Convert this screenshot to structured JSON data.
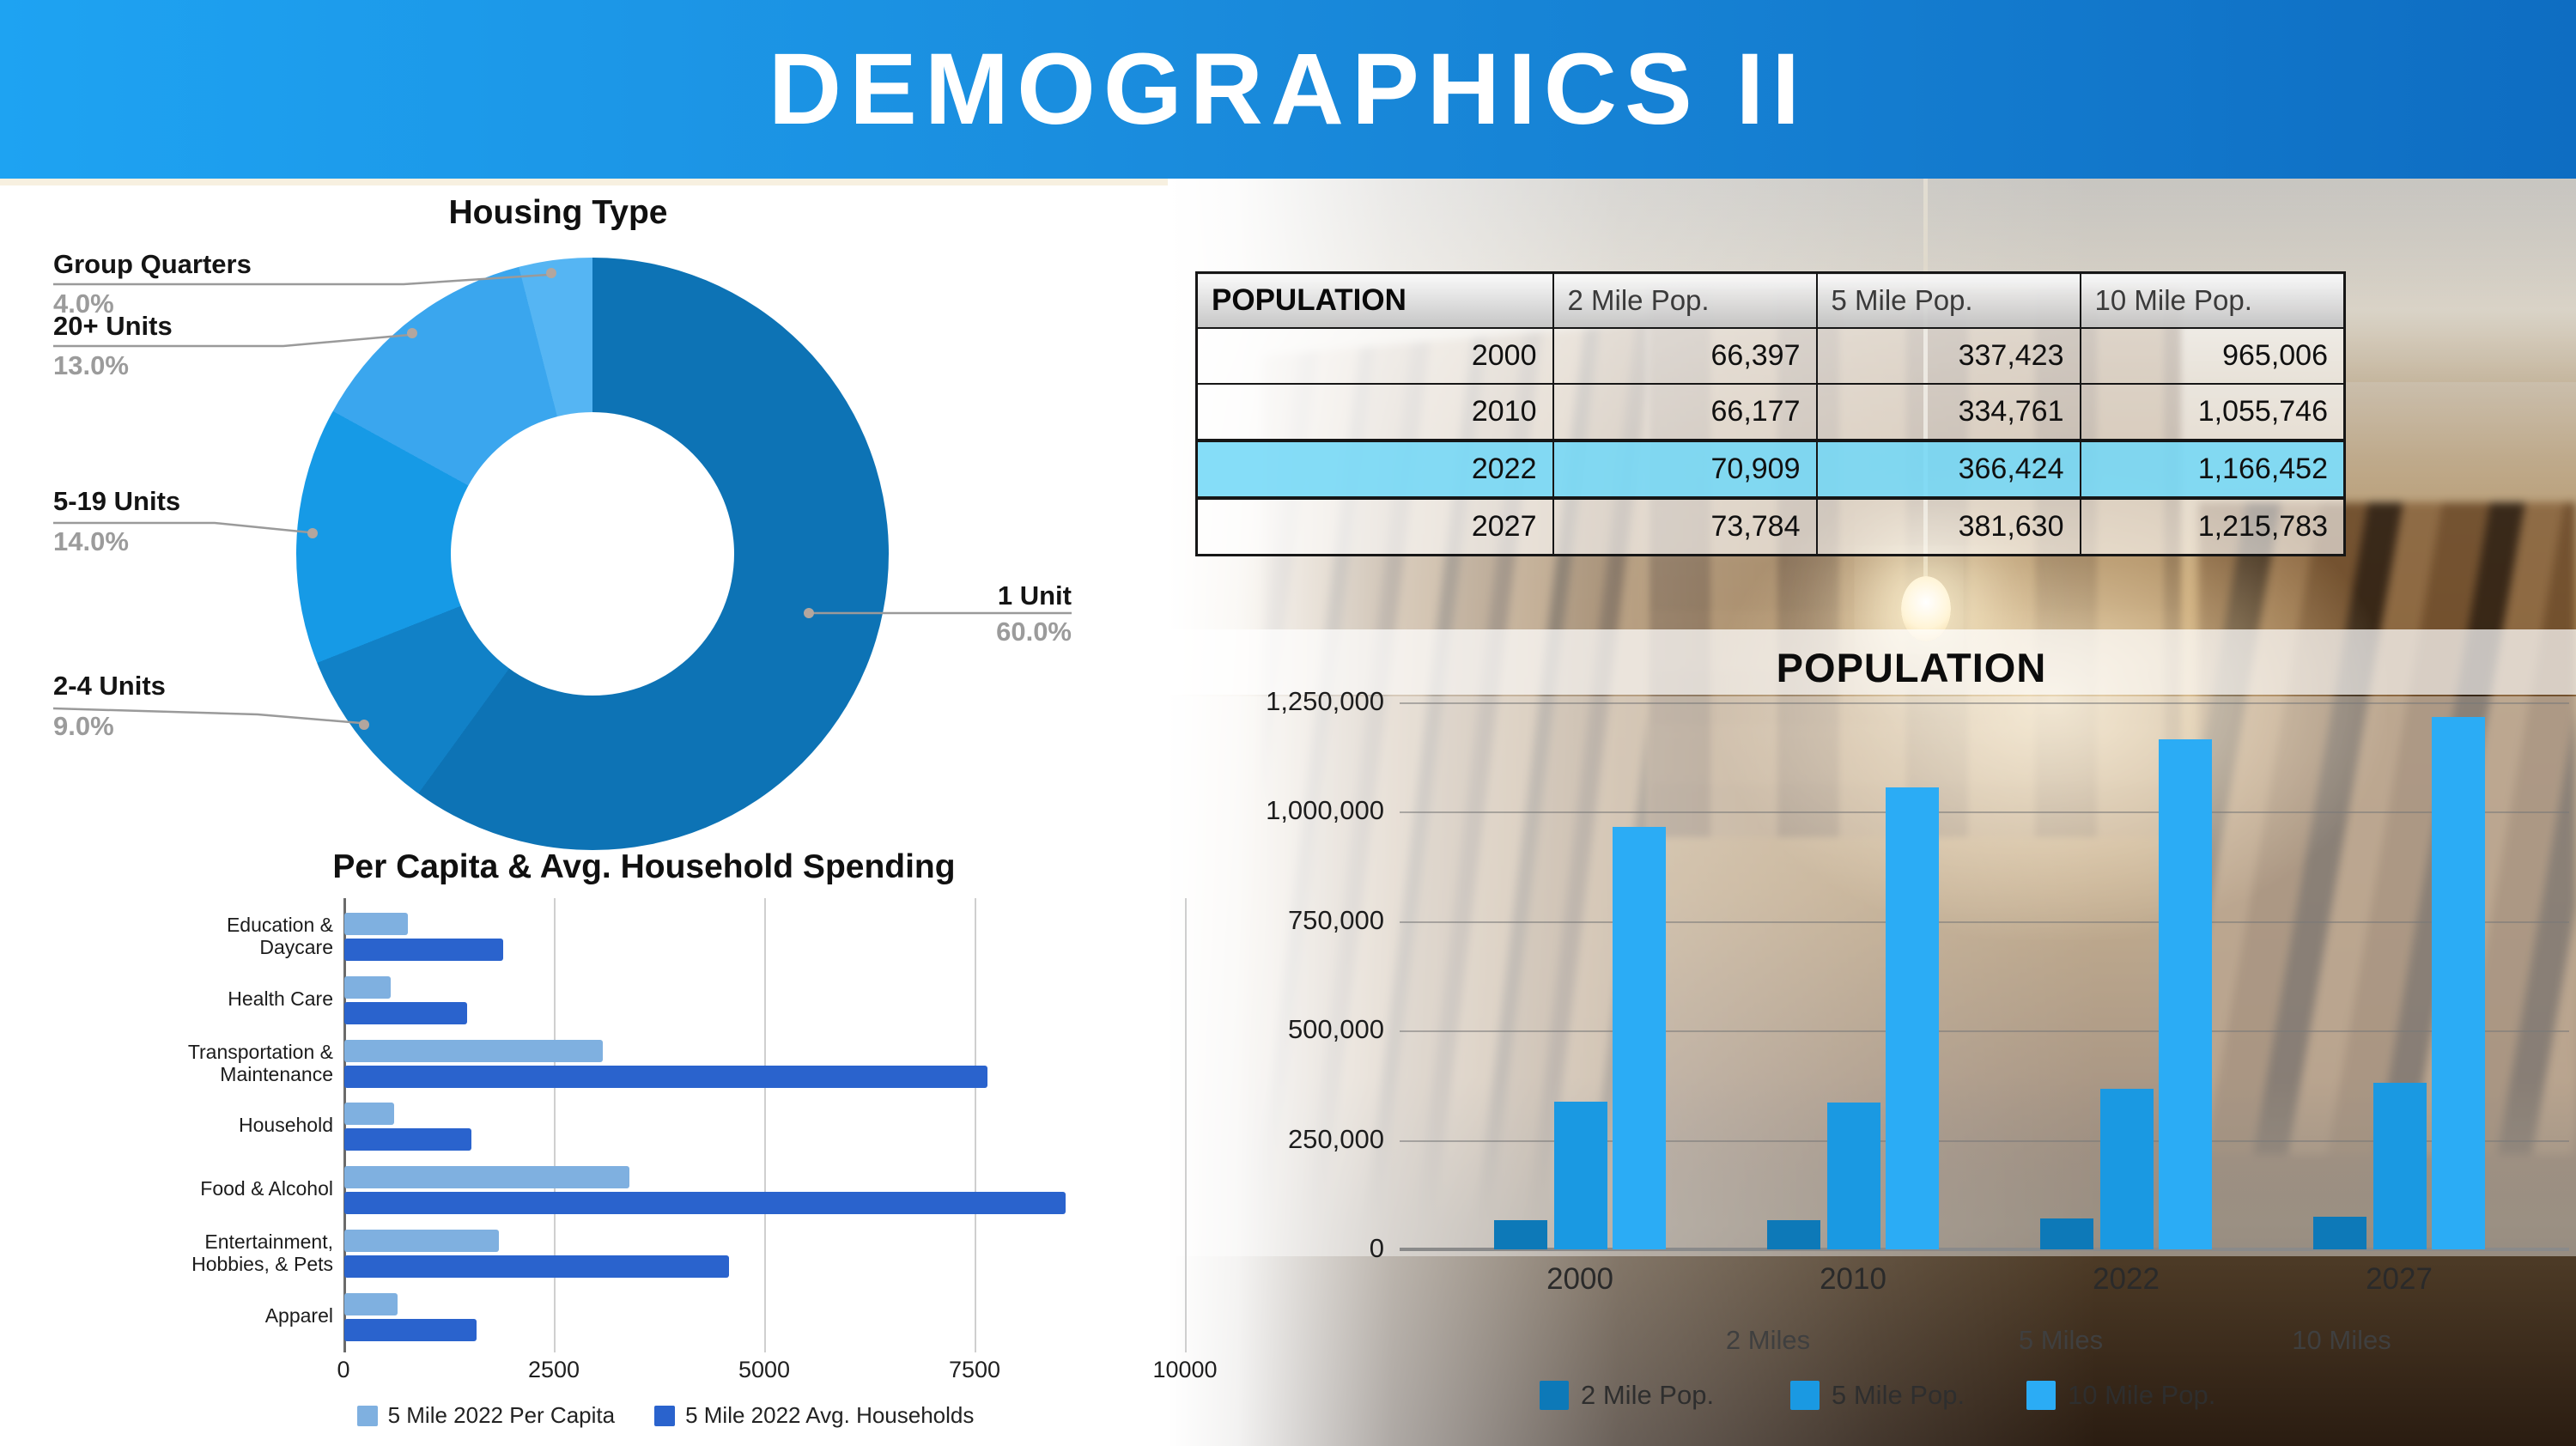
{
  "header": {
    "title": "DEMOGRAPHICS II"
  },
  "population_table": {
    "header": [
      "POPULATION",
      "2 Mile Pop.",
      "5 Mile Pop.",
      "10 Mile Pop."
    ],
    "rows": [
      {
        "year": "2000",
        "values": [
          "66,397",
          "337,423",
          "965,006"
        ],
        "highlight": false
      },
      {
        "year": "2010",
        "values": [
          "66,177",
          "334,761",
          "1,055,746"
        ],
        "highlight": false
      },
      {
        "year": "2022",
        "values": [
          "70,909",
          "366,424",
          "1,166,452"
        ],
        "highlight": true
      },
      {
        "year": "2027",
        "values": [
          "73,784",
          "381,630",
          "1,215,783"
        ],
        "highlight": false
      }
    ],
    "highlight_color": "#7edbf8"
  },
  "chart_data": [
    {
      "id": "housing_type",
      "type": "pie",
      "donut": true,
      "title": "Housing Type",
      "labels": [
        "1 Unit",
        "2-4 Units",
        "5-19 Units",
        "20+ Units",
        "Group Quarters"
      ],
      "values": [
        60.0,
        9.0,
        14.0,
        13.0,
        4.0
      ],
      "percent_labels": [
        "60.0%",
        "9.0%",
        "14.0%",
        "13.0%",
        "4.0%"
      ],
      "colors": [
        "#0d73b5",
        "#1181c7",
        "#169ae6",
        "#3aa6ee",
        "#55b5f3"
      ],
      "legend_position": "none"
    },
    {
      "id": "spending",
      "type": "bar",
      "orientation": "horizontal",
      "title": "Per Capita & Avg. Household Spending",
      "categories": [
        "Education &\nDaycare",
        "Health Care",
        "Transportation &\nMaintenance",
        "Household",
        "Food & Alcohol",
        "Entertainment,\nHobbies, & Pets",
        "Apparel"
      ],
      "series": [
        {
          "name": "5 Mile 2022 Per Capita",
          "color": "#7fb0e0",
          "values": [
            750,
            550,
            3070,
            590,
            3390,
            1840,
            630
          ]
        },
        {
          "name": "5 Mile 2022 Avg. Households",
          "color": "#2a63cd",
          "values": [
            1890,
            1460,
            7640,
            1510,
            8570,
            4570,
            1570
          ]
        }
      ],
      "xlim": [
        0,
        10000
      ],
      "xticks": [
        0,
        2500,
        5000,
        7500,
        10000
      ],
      "xtick_labels": [
        "0",
        "2500",
        "5000",
        "7500",
        "10000"
      ],
      "grid": true,
      "legend_position": "bottom"
    },
    {
      "id": "population",
      "type": "bar",
      "orientation": "vertical",
      "title": "POPULATION",
      "categories": [
        "2000",
        "2010",
        "2022",
        "2027"
      ],
      "series": [
        {
          "name": "2 Mile Pop.",
          "color": "#0d79b8",
          "values": [
            66397,
            66177,
            70909,
            73784
          ]
        },
        {
          "name": "5 Mile Pop.",
          "color": "#1a99e2",
          "values": [
            337423,
            334761,
            366424,
            381630
          ]
        },
        {
          "name": "10 Mile Pop.",
          "color": "#2bacf5",
          "values": [
            965006,
            1055746,
            1166452,
            1215783
          ]
        }
      ],
      "ylim": [
        0,
        1250000
      ],
      "yticks": [
        0,
        250000,
        500000,
        750000,
        1000000,
        1250000
      ],
      "ytick_labels": [
        "0",
        "250,000",
        "500,000",
        "750,000",
        "1,000,000",
        "1,250,000"
      ],
      "distance_labels": [
        "2 Miles",
        "5 Miles",
        "10 Miles"
      ],
      "grid": true,
      "legend_position": "bottom"
    }
  ]
}
